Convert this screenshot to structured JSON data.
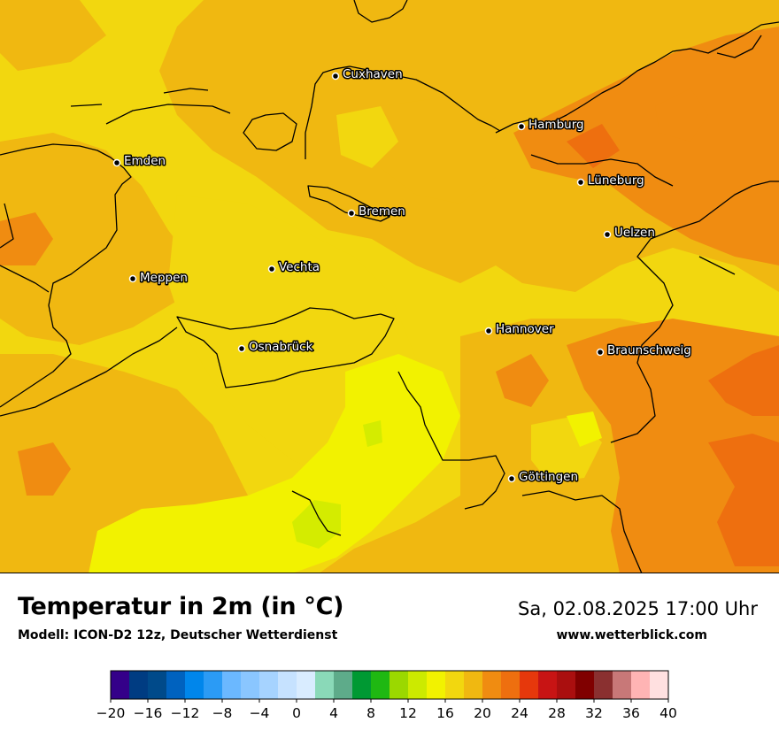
{
  "map": {
    "title": "Temperatur in 2m (in °C)",
    "subtitle": "Modell: ICON-D2 12z, Deutscher Wetterdienst",
    "datetime": "Sa, 02.08.2025 17:00 Uhr",
    "website": "www.wetterblick.com",
    "cities": [
      {
        "name": "Cuxhaven",
        "key": "cuxhaven"
      },
      {
        "name": "Hamburg",
        "key": "hamburg"
      },
      {
        "name": "Emden",
        "key": "emden"
      },
      {
        "name": "Lüneburg",
        "key": "lueneburg"
      },
      {
        "name": "Bremen",
        "key": "bremen"
      },
      {
        "name": "Uelzen",
        "key": "uelzen"
      },
      {
        "name": "Vechta",
        "key": "vechta"
      },
      {
        "name": "Meppen",
        "key": "meppen"
      },
      {
        "name": "Hannover",
        "key": "hannover"
      },
      {
        "name": "Osnabrück",
        "key": "osnabrueck"
      },
      {
        "name": "Braunschweig",
        "key": "braunschweig"
      },
      {
        "name": "Göttingen",
        "key": "goettingen"
      }
    ],
    "colors": {
      "cool_yellow": "#f2f200",
      "yellow": "#f2d70f",
      "light_orange": "#f0b811",
      "orange": "#f08c11",
      "dark_orange": "#ee6f0f",
      "yellow_green": "#d4ec00"
    }
  },
  "legend": {
    "tick_labels": [
      "−20",
      "−16",
      "−12",
      "−8",
      "−4",
      "0",
      "4",
      "8",
      "12",
      "16",
      "20",
      "24",
      "28",
      "32",
      "36",
      "40"
    ],
    "colors": [
      "#340089",
      "#003c82",
      "#004a8a",
      "#0062bf",
      "#0086eb",
      "#2b9bf5",
      "#6bb8ff",
      "#8ac6ff",
      "#a6d3ff",
      "#c6e2ff",
      "#d9ecff",
      "#8ad9b8",
      "#5eab8a",
      "#009933",
      "#1fb812",
      "#9bd800",
      "#ccea00",
      "#f2f200",
      "#f2d70f",
      "#f0b811",
      "#f08c11",
      "#ee6f0f",
      "#e6380c",
      "#c81414",
      "#aa0f0f",
      "#800000",
      "#8a3030",
      "#c87878",
      "#ffb4b4",
      "#ffe0e0"
    ]
  }
}
